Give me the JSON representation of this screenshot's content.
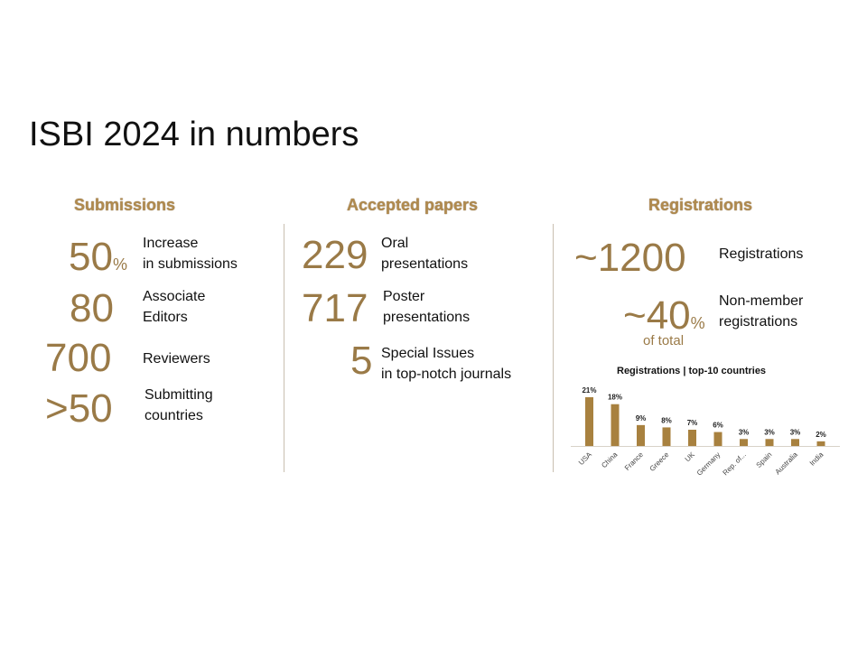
{
  "title": "ISBI 2024 in numbers",
  "submissions": {
    "heading": "Submissions",
    "items": [
      {
        "value": "50",
        "suffix": "%",
        "label1": "Increase",
        "label2": "in submissions"
      },
      {
        "value": "80",
        "label1": "Associate",
        "label2": "Editors"
      },
      {
        "value": "700",
        "label1": "Reviewers"
      },
      {
        "value": ">50",
        "label1": "Submitting",
        "label2": "countries"
      }
    ]
  },
  "accepted": {
    "heading": "Accepted papers",
    "items": [
      {
        "value": "229",
        "label1": "Oral",
        "label2": "presentations"
      },
      {
        "value": "717",
        "label1": "Poster",
        "label2": "presentations"
      },
      {
        "value": "5",
        "label1": "Special Issues",
        "label2": "in top-notch journals"
      }
    ]
  },
  "registrations": {
    "heading": "Registrations",
    "total_value": "~1200",
    "total_label": "Registrations",
    "nonmember_value": "~40",
    "nonmember_suffix": "%",
    "nonmember_sub": "of total",
    "nonmember_label1": "Non-member",
    "nonmember_label2": "registrations"
  },
  "colors": {
    "gold": "#9a7a47",
    "bar": "#a8813f"
  },
  "chart_data": {
    "type": "bar",
    "title": "Registrations | top-10 countries",
    "categories": [
      "USA",
      "China",
      "France",
      "Greece",
      "UK",
      "Germany",
      "Rep. of...",
      "Spain",
      "Australia",
      "India"
    ],
    "values": [
      21,
      18,
      9,
      8,
      7,
      6,
      3,
      3,
      3,
      2
    ],
    "data_labels": [
      "21%",
      "18%",
      "9%",
      "8%",
      "7%",
      "6%",
      "3%",
      "3%",
      "3%",
      "2%"
    ],
    "ylim": [
      0,
      21
    ],
    "grid": false
  }
}
